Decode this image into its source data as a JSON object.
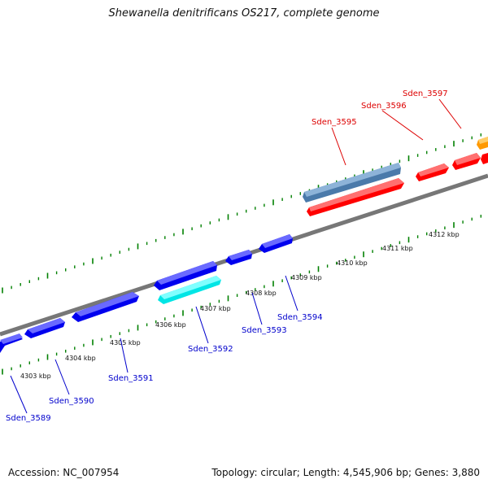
{
  "title": "Shewanella denitrificans OS217, complete genome",
  "footer": {
    "accession": "Accession: NC_007954",
    "summary": "Topology: circular; Length: 4,545,906 bp; Genes: 3,880"
  },
  "colors": {
    "backbone": "#808080",
    "tick": "#008000",
    "forward_gene": "#ff0000",
    "reverse_gene": "#0000ee",
    "highlight_reverse": "#00e5e5",
    "highlight_forward": "#4a7aaa",
    "orange_gene": "#ff9900",
    "forward_label": "#dd0000",
    "reverse_label": "#0000cc"
  },
  "scale_labels": [
    "4303 kbp",
    "4304 kbp",
    "4305 kbp",
    "4306 kbp",
    "4307 kbp",
    "4308 kbp",
    "4309 kbp",
    "4310 kbp",
    "4311 kbp",
    "4312 kbp"
  ],
  "gene_labels": {
    "forward": [
      "Sden_3595",
      "Sden_3596",
      "Sden_3597"
    ],
    "reverse": [
      "Sden_3589",
      "Sden_3590",
      "Sden_3591",
      "Sden_3592",
      "Sden_3593",
      "Sden_3594"
    ]
  }
}
